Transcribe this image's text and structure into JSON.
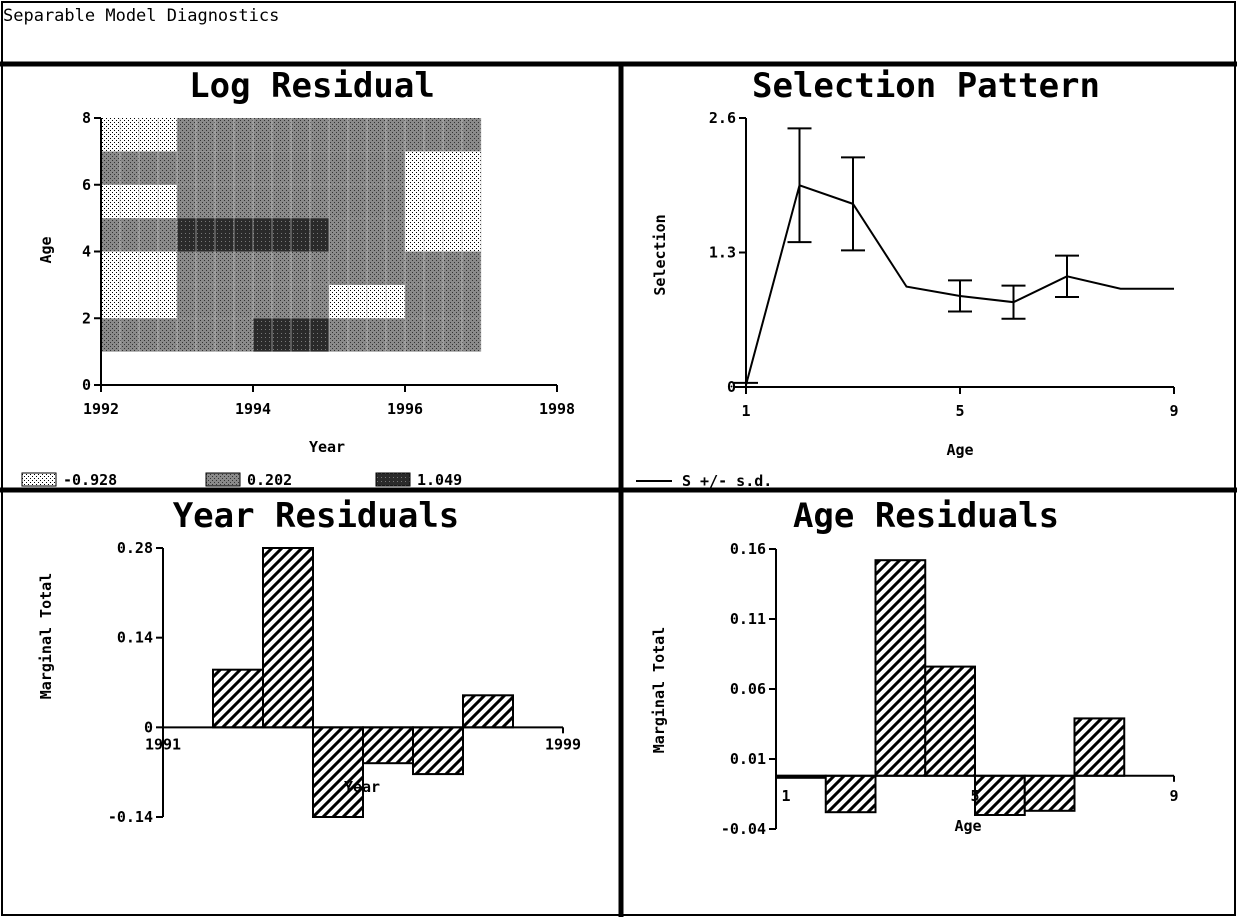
{
  "window": {
    "title": "Separable Model Diagnostics"
  },
  "chart_data": [
    {
      "type": "heatmap",
      "title": "Log Residual",
      "xlabel": "Year",
      "ylabel": "Age",
      "xlim": [
        1992,
        1998
      ],
      "ylim": [
        0,
        8
      ],
      "xticks": [
        1992,
        1994,
        1996,
        1998
      ],
      "yticks": [
        0,
        2,
        4,
        6,
        8
      ],
      "data_extent": {
        "x": [
          1992,
          1997
        ],
        "y": [
          1,
          8
        ]
      },
      "years": [
        1992,
        1993,
        1994,
        1995,
        1996
      ],
      "ages": [
        1,
        2,
        3,
        4,
        5,
        6,
        7
      ],
      "levels": [
        -0.928,
        0.202,
        1.049
      ],
      "grid": [
        [
          0.202,
          0.202,
          1.049,
          0.202,
          0.202
        ],
        [
          -0.928,
          0.202,
          0.202,
          -0.928,
          0.202
        ],
        [
          -0.928,
          0.202,
          0.202,
          0.202,
          0.202
        ],
        [
          0.202,
          1.049,
          1.049,
          0.202,
          -0.928
        ],
        [
          -0.928,
          0.202,
          0.202,
          0.202,
          -0.928
        ],
        [
          0.202,
          0.202,
          0.202,
          0.202,
          -0.928
        ],
        [
          -0.928,
          0.202,
          0.202,
          0.202,
          0.202
        ]
      ],
      "legend": [
        {
          "label": "-0.928",
          "pattern": "light"
        },
        {
          "label": "0.202",
          "pattern": "medium"
        },
        {
          "label": "1.049",
          "pattern": "dark"
        }
      ],
      "legend_position": "bottom"
    },
    {
      "type": "line",
      "title": "Selection Pattern",
      "xlabel": "Age",
      "ylabel": "Selection",
      "xlim": [
        1,
        9
      ],
      "ylim": [
        0,
        2.6
      ],
      "xticks": [
        1,
        5,
        9
      ],
      "yticks": [
        0,
        1.3,
        2.6
      ],
      "series": [
        {
          "name": "S +/- s.d.",
          "x": [
            1,
            2,
            3,
            4,
            5,
            6,
            7,
            8,
            9
          ],
          "values": [
            0.02,
            1.95,
            1.77,
            0.97,
            0.88,
            0.82,
            1.07,
            0.95,
            0.95
          ],
          "error": [
            0.02,
            0.55,
            0.45,
            null,
            0.15,
            0.16,
            0.2,
            null,
            null
          ]
        }
      ],
      "legend_position": "bottom-left"
    },
    {
      "type": "bar",
      "title": "Year Residuals",
      "xlabel": "Year",
      "ylabel": "Marginal Total",
      "xlim": [
        1991,
        1999
      ],
      "ylim": [
        -0.14,
        0.28
      ],
      "xticks": [
        1991,
        1999
      ],
      "yticks": [
        -0.14,
        0,
        0.14,
        0.28
      ],
      "x": [
        1992,
        1993,
        1994,
        1995,
        1996,
        1997,
        1998
      ],
      "values": [
        0.09,
        0.28,
        -0.14,
        -0.056,
        -0.073,
        0.05,
        0
      ]
    },
    {
      "type": "bar",
      "title": "Age Residuals",
      "xlabel": "Age",
      "ylabel": "Marginal Total",
      "xlim": [
        1,
        9
      ],
      "ylim": [
        -0.04,
        0.16
      ],
      "xticks": [
        1,
        5,
        9
      ],
      "yticks": [
        -0.04,
        0.01,
        0.06,
        0.11,
        0.16
      ],
      "x": [
        1,
        2,
        3,
        4,
        5,
        6,
        7
      ],
      "baseline": -0.002,
      "values": [
        -0.002,
        -0.028,
        0.152,
        0.076,
        -0.03,
        -0.027,
        0.039
      ]
    }
  ]
}
